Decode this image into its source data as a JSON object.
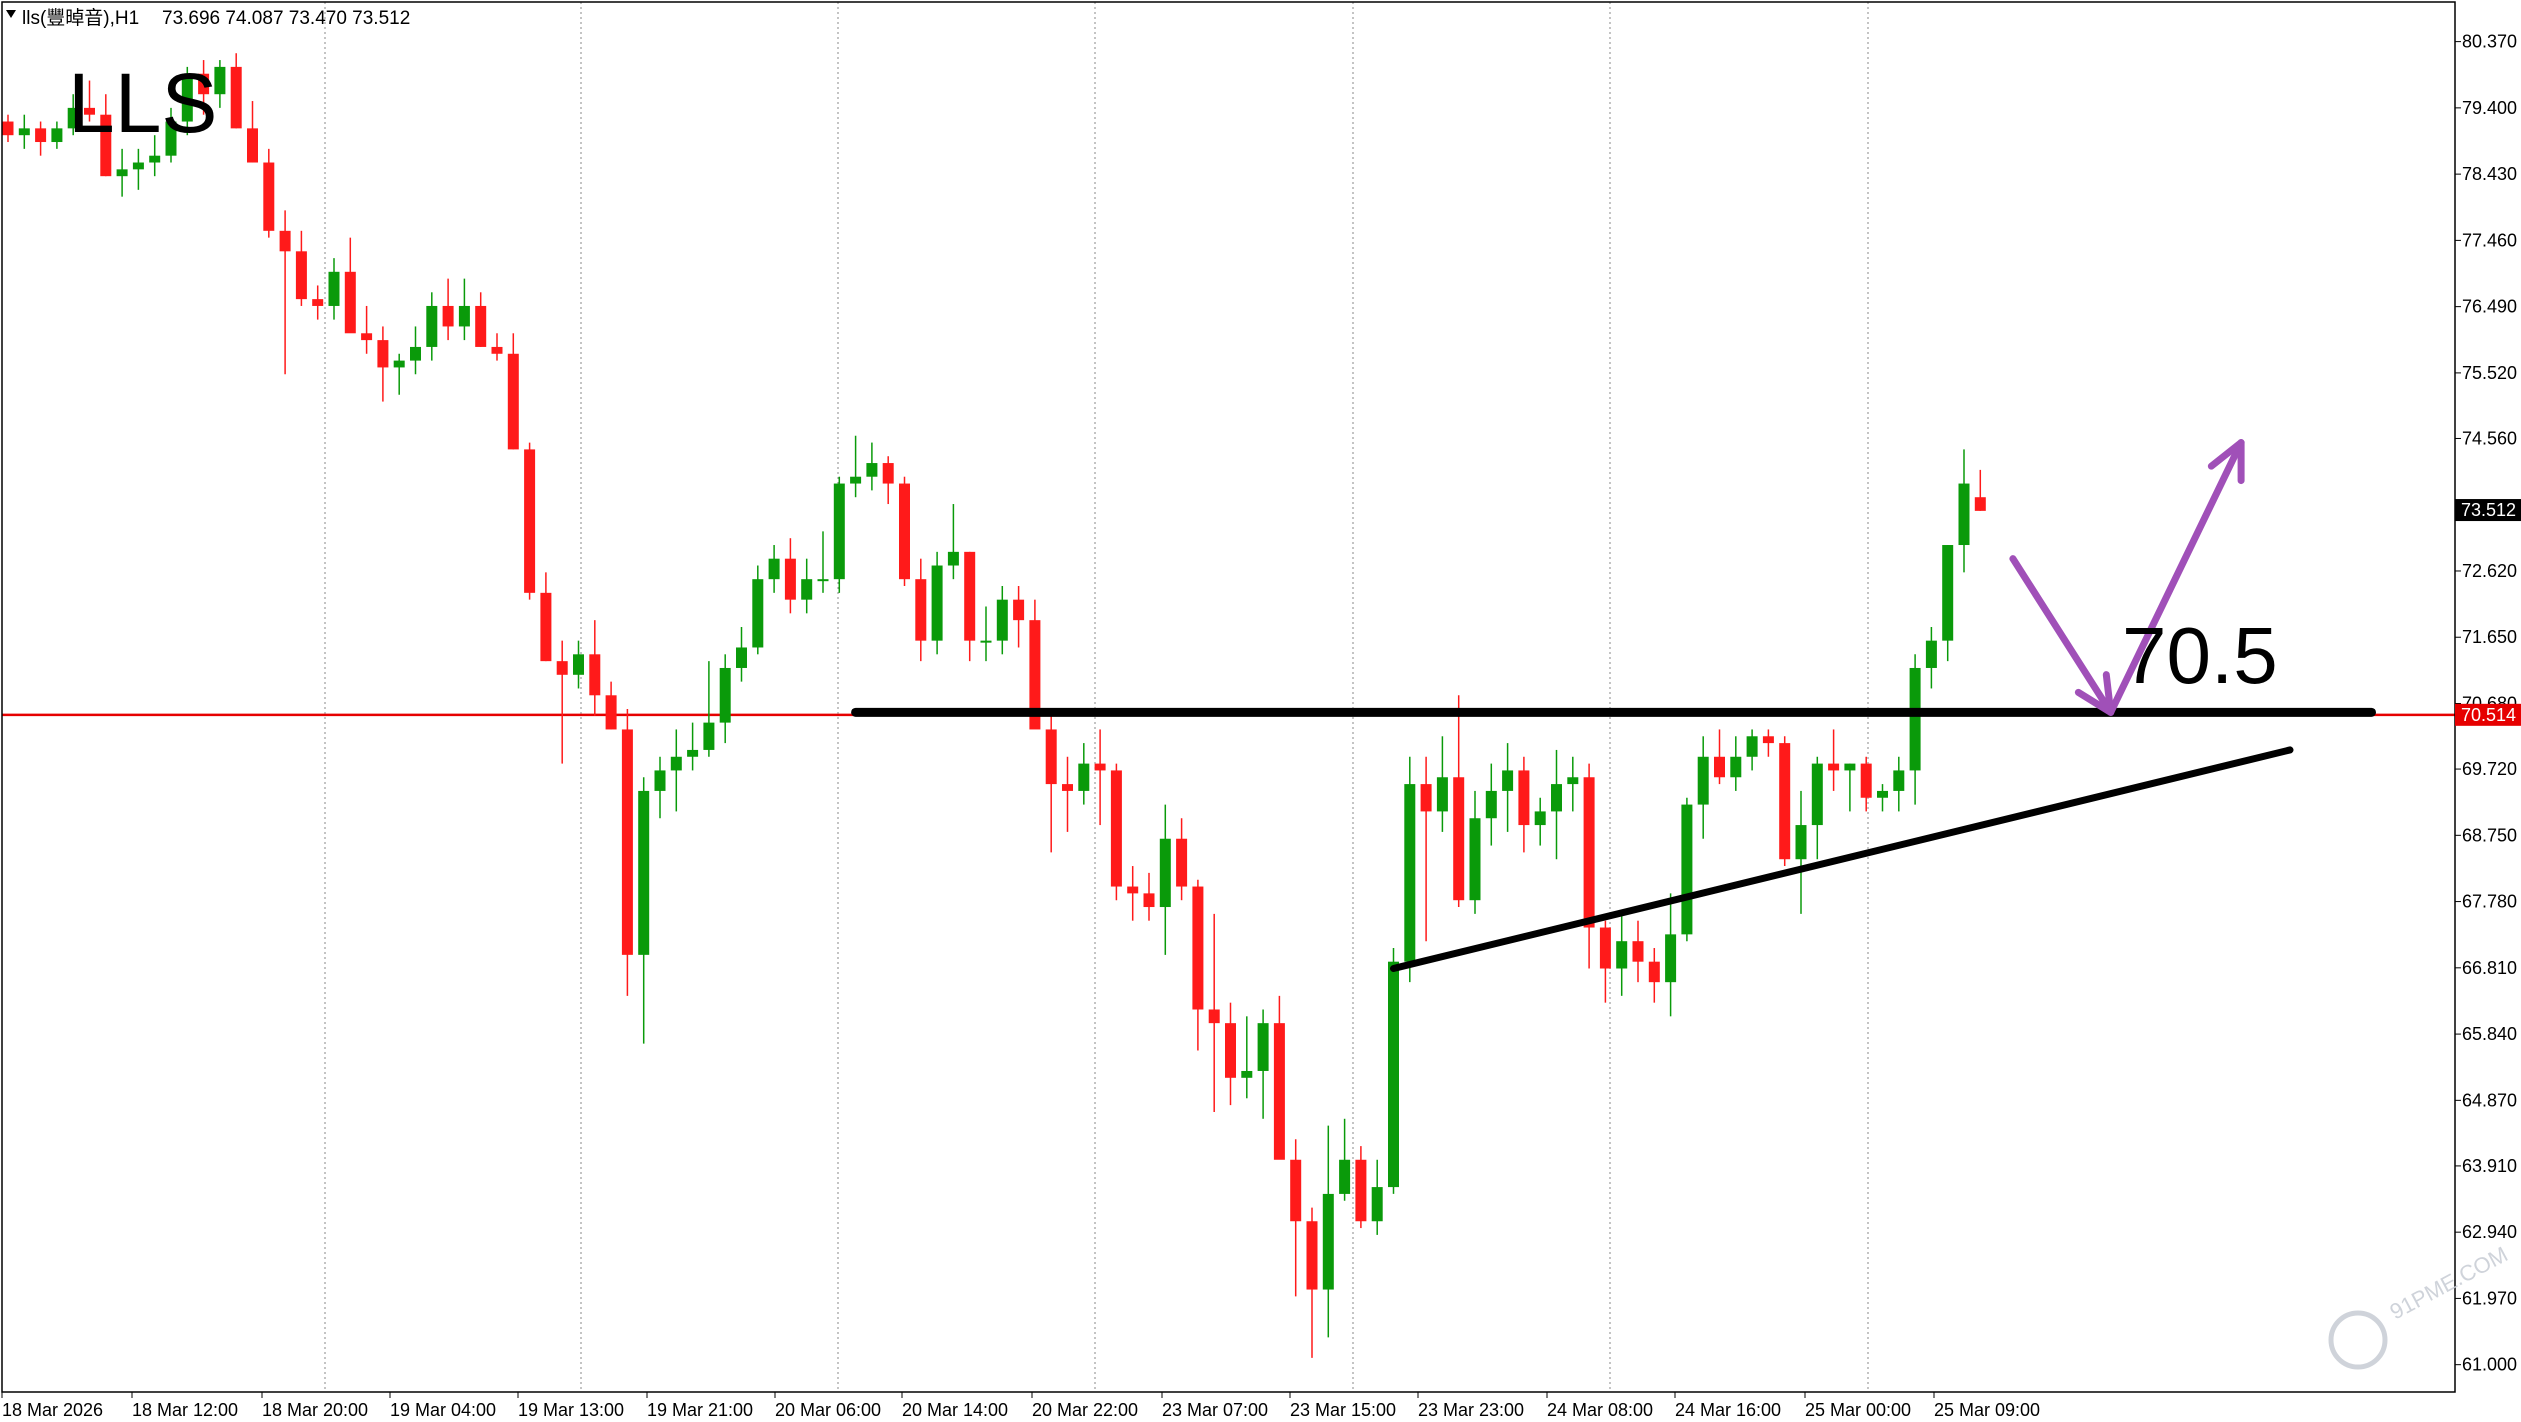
{
  "header": {
    "menu_icon": "triangle-down-icon",
    "symbol": "lls(豐晫音),H1",
    "ohlc": "73.696 74.087 73.470 73.512"
  },
  "colors": {
    "bull": "#0a9a0a",
    "bear": "#ff1a1a",
    "hline": "#e60000",
    "arrow": "#a050b8",
    "grid": "#8a8a8a"
  },
  "chart_data": {
    "type": "candlestick",
    "symbol_label": "LLS",
    "price_axis": {
      "ticks": [
        "80.370",
        "79.400",
        "78.430",
        "77.460",
        "76.490",
        "75.520",
        "74.560",
        "73.512",
        "72.620",
        "71.650",
        "70.680",
        "70.514",
        "69.720",
        "68.750",
        "67.780",
        "66.810",
        "65.840",
        "64.870",
        "63.910",
        "62.940",
        "61.970",
        "61.000"
      ],
      "ylim": [
        60.6,
        80.95
      ]
    },
    "time_axis": {
      "labels": [
        "18 Mar 2026",
        "18 Mar 12:00",
        "18 Mar 20:00",
        "19 Mar 04:00",
        "19 Mar 13:00",
        "19 Mar 21:00",
        "20 Mar 06:00",
        "20 Mar 14:00",
        "20 Mar 22:00",
        "23 Mar 07:00",
        "23 Mar 15:00",
        "23 Mar 23:00",
        "24 Mar 08:00",
        "24 Mar 16:00",
        "25 Mar 00:00",
        "25 Mar 09:00"
      ]
    },
    "current_price": 73.512,
    "horizontal_line": 70.514,
    "resistance_level": 70.55,
    "trendline": [
      [
        66.8,
        70.0
      ]
    ],
    "annotation_level": "70.5",
    "grid": "vertical dotted",
    "candles": [
      [
        79.2,
        79.3,
        78.9,
        79.0
      ],
      [
        79.0,
        79.3,
        78.8,
        79.1
      ],
      [
        79.1,
        79.2,
        78.7,
        78.9
      ],
      [
        78.9,
        79.2,
        78.8,
        79.1
      ],
      [
        79.1,
        79.6,
        79.0,
        79.4
      ],
      [
        79.4,
        79.8,
        79.2,
        79.3
      ],
      [
        79.3,
        79.6,
        78.4,
        78.4
      ],
      [
        78.4,
        78.8,
        78.1,
        78.5
      ],
      [
        78.5,
        78.8,
        78.2,
        78.6
      ],
      [
        78.6,
        79.0,
        78.4,
        78.7
      ],
      [
        78.7,
        79.4,
        78.6,
        79.2
      ],
      [
        79.2,
        80.0,
        79.0,
        79.9
      ],
      [
        79.9,
        80.1,
        79.3,
        79.6
      ],
      [
        79.6,
        80.1,
        79.4,
        80.0
      ],
      [
        80.0,
        80.2,
        79.1,
        79.1
      ],
      [
        79.1,
        79.5,
        78.6,
        78.6
      ],
      [
        78.6,
        78.8,
        77.5,
        77.6
      ],
      [
        77.6,
        77.9,
        75.5,
        77.3
      ],
      [
        77.3,
        77.6,
        76.5,
        76.6
      ],
      [
        76.6,
        76.8,
        76.3,
        76.5
      ],
      [
        76.5,
        77.2,
        76.3,
        77.0
      ],
      [
        77.0,
        77.5,
        76.2,
        76.1
      ],
      [
        76.1,
        76.5,
        75.8,
        76.0
      ],
      [
        76.0,
        76.2,
        75.1,
        75.6
      ],
      [
        75.6,
        75.8,
        75.2,
        75.7
      ],
      [
        75.7,
        76.2,
        75.5,
        75.9
      ],
      [
        75.9,
        76.7,
        75.7,
        76.5
      ],
      [
        76.5,
        76.9,
        76.0,
        76.2
      ],
      [
        76.2,
        76.9,
        76.0,
        76.5
      ],
      [
        76.5,
        76.7,
        75.9,
        75.9
      ],
      [
        75.9,
        76.1,
        75.7,
        75.8
      ],
      [
        75.8,
        76.1,
        74.4,
        74.4
      ],
      [
        74.4,
        74.5,
        72.2,
        72.3
      ],
      [
        72.3,
        72.6,
        71.3,
        71.3
      ],
      [
        71.3,
        71.6,
        69.8,
        71.1
      ],
      [
        71.1,
        71.6,
        70.9,
        71.4
      ],
      [
        71.4,
        71.9,
        70.5,
        70.8
      ],
      [
        70.8,
        71.0,
        70.3,
        70.3
      ],
      [
        70.3,
        70.6,
        66.4,
        67.0
      ],
      [
        67.0,
        69.6,
        65.7,
        69.4
      ],
      [
        69.4,
        69.9,
        69.0,
        69.7
      ],
      [
        69.7,
        70.3,
        69.1,
        69.9
      ],
      [
        69.9,
        70.4,
        69.7,
        70.0
      ],
      [
        70.0,
        71.3,
        69.9,
        70.4
      ],
      [
        70.4,
        71.4,
        70.1,
        71.2
      ],
      [
        71.2,
        71.8,
        71.0,
        71.5
      ],
      [
        71.5,
        72.7,
        71.4,
        72.5
      ],
      [
        72.5,
        73.0,
        72.3,
        72.8
      ],
      [
        72.8,
        73.1,
        72.0,
        72.2
      ],
      [
        72.2,
        72.8,
        72.0,
        72.5
      ],
      [
        72.5,
        73.2,
        72.3,
        72.5
      ],
      [
        72.5,
        74.0,
        72.3,
        73.9
      ],
      [
        73.9,
        74.6,
        73.7,
        74.0
      ],
      [
        74.0,
        74.5,
        73.8,
        74.2
      ],
      [
        74.2,
        74.3,
        73.6,
        73.9
      ],
      [
        73.9,
        74.0,
        72.4,
        72.5
      ],
      [
        72.5,
        72.8,
        71.3,
        71.6
      ],
      [
        71.6,
        72.9,
        71.4,
        72.7
      ],
      [
        72.7,
        73.6,
        72.5,
        72.9
      ],
      [
        72.9,
        72.9,
        71.3,
        71.6
      ],
      [
        71.6,
        72.1,
        71.3,
        71.6
      ],
      [
        71.6,
        72.4,
        71.4,
        72.2
      ],
      [
        72.2,
        72.4,
        71.5,
        71.9
      ],
      [
        71.9,
        72.2,
        70.4,
        70.3
      ],
      [
        70.3,
        70.5,
        68.5,
        69.5
      ],
      [
        69.5,
        69.9,
        68.8,
        69.4
      ],
      [
        69.4,
        70.1,
        69.2,
        69.8
      ],
      [
        69.8,
        70.3,
        68.9,
        69.7
      ],
      [
        69.7,
        69.8,
        67.8,
        68.0
      ],
      [
        68.0,
        68.3,
        67.5,
        67.9
      ],
      [
        67.9,
        68.2,
        67.5,
        67.7
      ],
      [
        67.7,
        69.2,
        67.0,
        68.7
      ],
      [
        68.7,
        69.0,
        67.8,
        68.0
      ],
      [
        68.0,
        68.1,
        65.6,
        66.2
      ],
      [
        66.2,
        67.6,
        64.7,
        66.0
      ],
      [
        66.0,
        66.3,
        64.8,
        65.2
      ],
      [
        65.2,
        66.1,
        64.9,
        65.3
      ],
      [
        65.3,
        66.2,
        64.6,
        66.0
      ],
      [
        66.0,
        66.4,
        64.1,
        64.0
      ],
      [
        64.0,
        64.3,
        62.0,
        63.1
      ],
      [
        63.1,
        63.3,
        61.1,
        62.1
      ],
      [
        62.1,
        64.5,
        61.4,
        63.5
      ],
      [
        63.5,
        64.6,
        63.4,
        64.0
      ],
      [
        64.0,
        64.2,
        63.0,
        63.1
      ],
      [
        63.1,
        64.0,
        62.9,
        63.6
      ],
      [
        63.6,
        67.1,
        63.5,
        66.9
      ],
      [
        66.9,
        69.9,
        66.6,
        69.5
      ],
      [
        69.5,
        69.9,
        67.2,
        69.1
      ],
      [
        69.1,
        70.2,
        68.8,
        69.6
      ],
      [
        69.6,
        70.8,
        67.7,
        67.8
      ],
      [
        67.8,
        69.4,
        67.6,
        69.0
      ],
      [
        69.0,
        69.8,
        68.6,
        69.4
      ],
      [
        69.4,
        70.1,
        68.8,
        69.7
      ],
      [
        69.7,
        69.9,
        68.5,
        68.9
      ],
      [
        68.9,
        69.3,
        68.6,
        69.1
      ],
      [
        69.1,
        70.0,
        68.4,
        69.5
      ],
      [
        69.5,
        69.9,
        69.1,
        69.6
      ],
      [
        69.6,
        69.8,
        66.8,
        67.4
      ],
      [
        67.4,
        67.5,
        66.3,
        66.8
      ],
      [
        66.8,
        67.6,
        66.4,
        67.2
      ],
      [
        67.2,
        67.5,
        66.6,
        66.9
      ],
      [
        66.9,
        67.1,
        66.3,
        66.6
      ],
      [
        66.6,
        67.9,
        66.1,
        67.3
      ],
      [
        67.3,
        69.3,
        67.2,
        69.2
      ],
      [
        69.2,
        70.2,
        68.7,
        69.9
      ],
      [
        69.9,
        70.3,
        69.5,
        69.6
      ],
      [
        69.6,
        70.2,
        69.4,
        69.9
      ],
      [
        69.9,
        70.3,
        69.7,
        70.2
      ],
      [
        70.2,
        70.3,
        69.9,
        70.1
      ],
      [
        70.1,
        70.2,
        68.3,
        68.4
      ],
      [
        68.4,
        69.4,
        67.6,
        68.9
      ],
      [
        68.9,
        69.9,
        68.4,
        69.8
      ],
      [
        69.8,
        70.3,
        69.4,
        69.7
      ],
      [
        69.7,
        69.8,
        69.1,
        69.8
      ],
      [
        69.8,
        69.9,
        69.1,
        69.3
      ],
      [
        69.3,
        69.5,
        69.1,
        69.4
      ],
      [
        69.4,
        69.9,
        69.1,
        69.7
      ],
      [
        69.7,
        71.4,
        69.2,
        71.2
      ],
      [
        71.2,
        71.8,
        70.9,
        71.6
      ],
      [
        71.6,
        73.0,
        71.3,
        73.0
      ],
      [
        73.0,
        74.4,
        72.6,
        73.9
      ],
      [
        73.7,
        74.1,
        73.5,
        73.5
      ]
    ],
    "trend_line": {
      "x": [
        85,
        140
      ],
      "y": [
        66.8,
        70.0
      ]
    },
    "resistance_line": {
      "x": [
        52,
        145
      ],
      "y": [
        70.55,
        70.55
      ]
    },
    "arrow_down": {
      "x": [
        123,
        129
      ],
      "y": [
        72.8,
        70.55
      ]
    },
    "arrow_up": {
      "x": [
        129,
        137
      ],
      "y": [
        70.55,
        74.5
      ]
    }
  },
  "watermark": "91PME.COM",
  "chart_icon": "watermark-logo-icon"
}
